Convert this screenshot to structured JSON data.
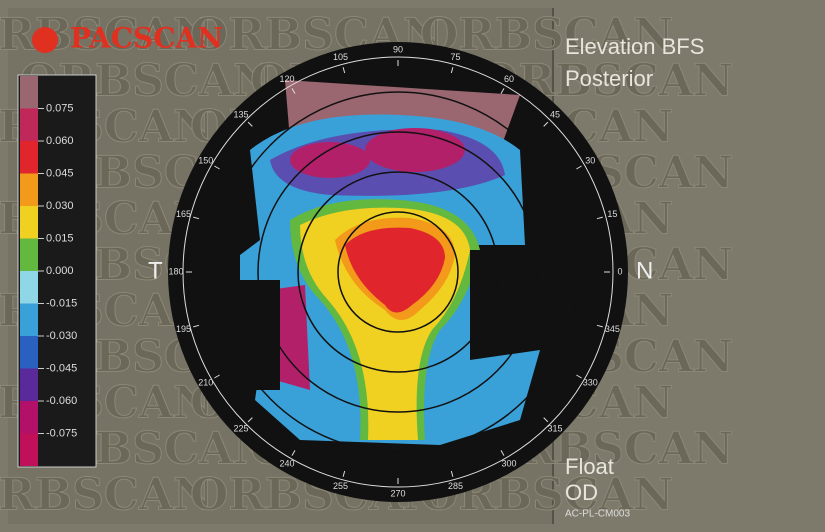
{
  "header": {
    "logo": "PACSCAN",
    "watermark": "ORBSCAN"
  },
  "map": {
    "title": "Elevation BFS",
    "surface": "Posterior",
    "left_label": "T",
    "right_label": "N",
    "mode": "Float",
    "eye": "OD",
    "code": "AC-PL-CM003",
    "angles": [
      0,
      15,
      30,
      45,
      60,
      75,
      90,
      105,
      120,
      135,
      150,
      165,
      180,
      195,
      210,
      225,
      240,
      255,
      270,
      285,
      300,
      315,
      330,
      345
    ]
  },
  "scale": {
    "labels": [
      "0.075",
      "0.060",
      "0.045",
      "0.030",
      "0.015",
      "0.000",
      "-0.015",
      "-0.030",
      "-0.045",
      "-0.060",
      "-0.075"
    ]
  }
}
